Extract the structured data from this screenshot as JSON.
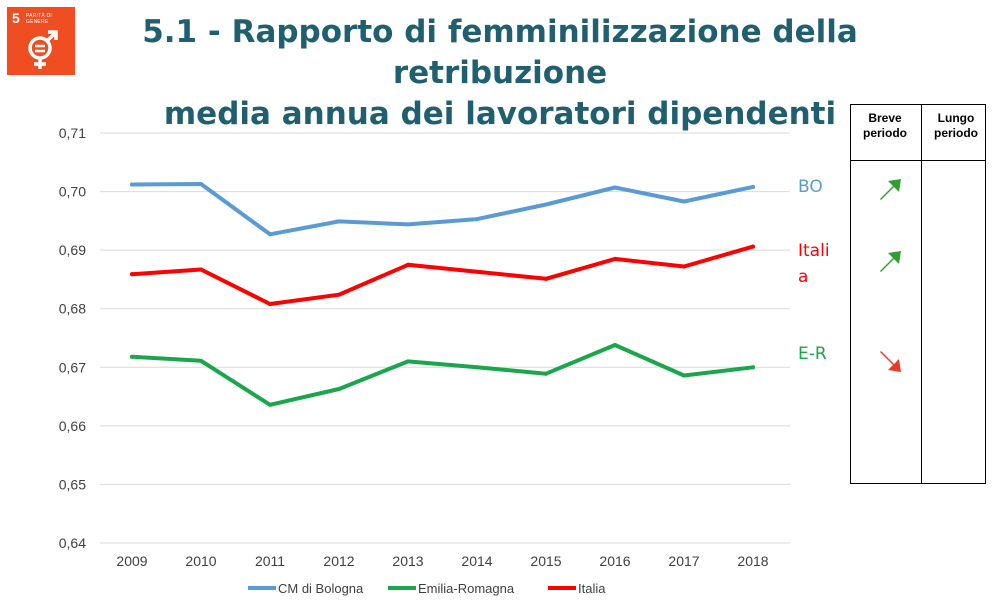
{
  "badge": {
    "number": "5",
    "goal_text": "PARITÀ DI GENERE",
    "icon": "gender-equality-icon",
    "color": "#ef4e23"
  },
  "title_line1": "5.1 - Rapporto di femminilizzazione della retribuzione",
  "title_line2": "media annua dei lavoratori dipendenti",
  "chart_data": {
    "type": "line",
    "x": [
      "2009",
      "2010",
      "2011",
      "2012",
      "2013",
      "2014",
      "2015",
      "2016",
      "2017",
      "2018"
    ],
    "series": [
      {
        "name": "CM di Bologna",
        "color": "#5b9bd5",
        "values": [
          0.7012,
          0.7013,
          0.6927,
          0.6949,
          0.6944,
          0.6953,
          0.6978,
          0.7007,
          0.6983,
          0.7008
        ],
        "end_label": "BO"
      },
      {
        "name": "Emilia-Romagna",
        "color": "#1aa64a",
        "values": [
          0.6718,
          0.6711,
          0.6636,
          0.6663,
          0.671,
          0.67,
          0.6689,
          0.6738,
          0.6686,
          0.67
        ],
        "end_label": "E-R"
      },
      {
        "name": "Italia",
        "color": "#ff0000",
        "values": [
          0.6859,
          0.6867,
          0.6808,
          0.6824,
          0.6875,
          0.6863,
          0.6851,
          0.6885,
          0.6872,
          0.6906
        ],
        "end_label": "Itali\na"
      }
    ],
    "yticks": [
      "0,64",
      "0,65",
      "0,66",
      "0,67",
      "0,68",
      "0,69",
      "0,70",
      "0,71"
    ],
    "ylim": [
      0.64,
      0.71
    ],
    "grid": true,
    "legend_position": "bottom"
  },
  "trend_table": {
    "headers": [
      "Breve\nperiodo",
      "Lungo\nperiodo"
    ],
    "rows": [
      {
        "series": "BO",
        "short_term": "up",
        "color": "#2ea02e"
      },
      {
        "series": "Italia",
        "short_term": "up",
        "color": "#2ea02e"
      },
      {
        "series": "E-R",
        "short_term": "down",
        "color": "#e8392a"
      }
    ]
  }
}
